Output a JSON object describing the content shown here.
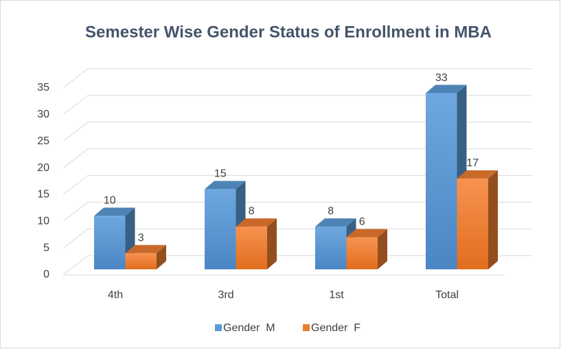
{
  "chart_data": {
    "type": "bar3d",
    "title": "Semester Wise Gender Status of Enrollment in MBA",
    "categories": [
      "4th",
      "3rd",
      "1st",
      "Total"
    ],
    "series": [
      {
        "name": "Gender  M",
        "color": "#5b9bd5",
        "values": [
          10,
          15,
          8,
          33
        ]
      },
      {
        "name": "Gender  F",
        "color": "#ed7d31",
        "values": [
          3,
          8,
          6,
          17
        ]
      }
    ],
    "ylim": [
      0,
      35
    ],
    "yticks": [
      0,
      5,
      10,
      15,
      20,
      25,
      30,
      35
    ],
    "grid": true,
    "legend": "bottom"
  }
}
